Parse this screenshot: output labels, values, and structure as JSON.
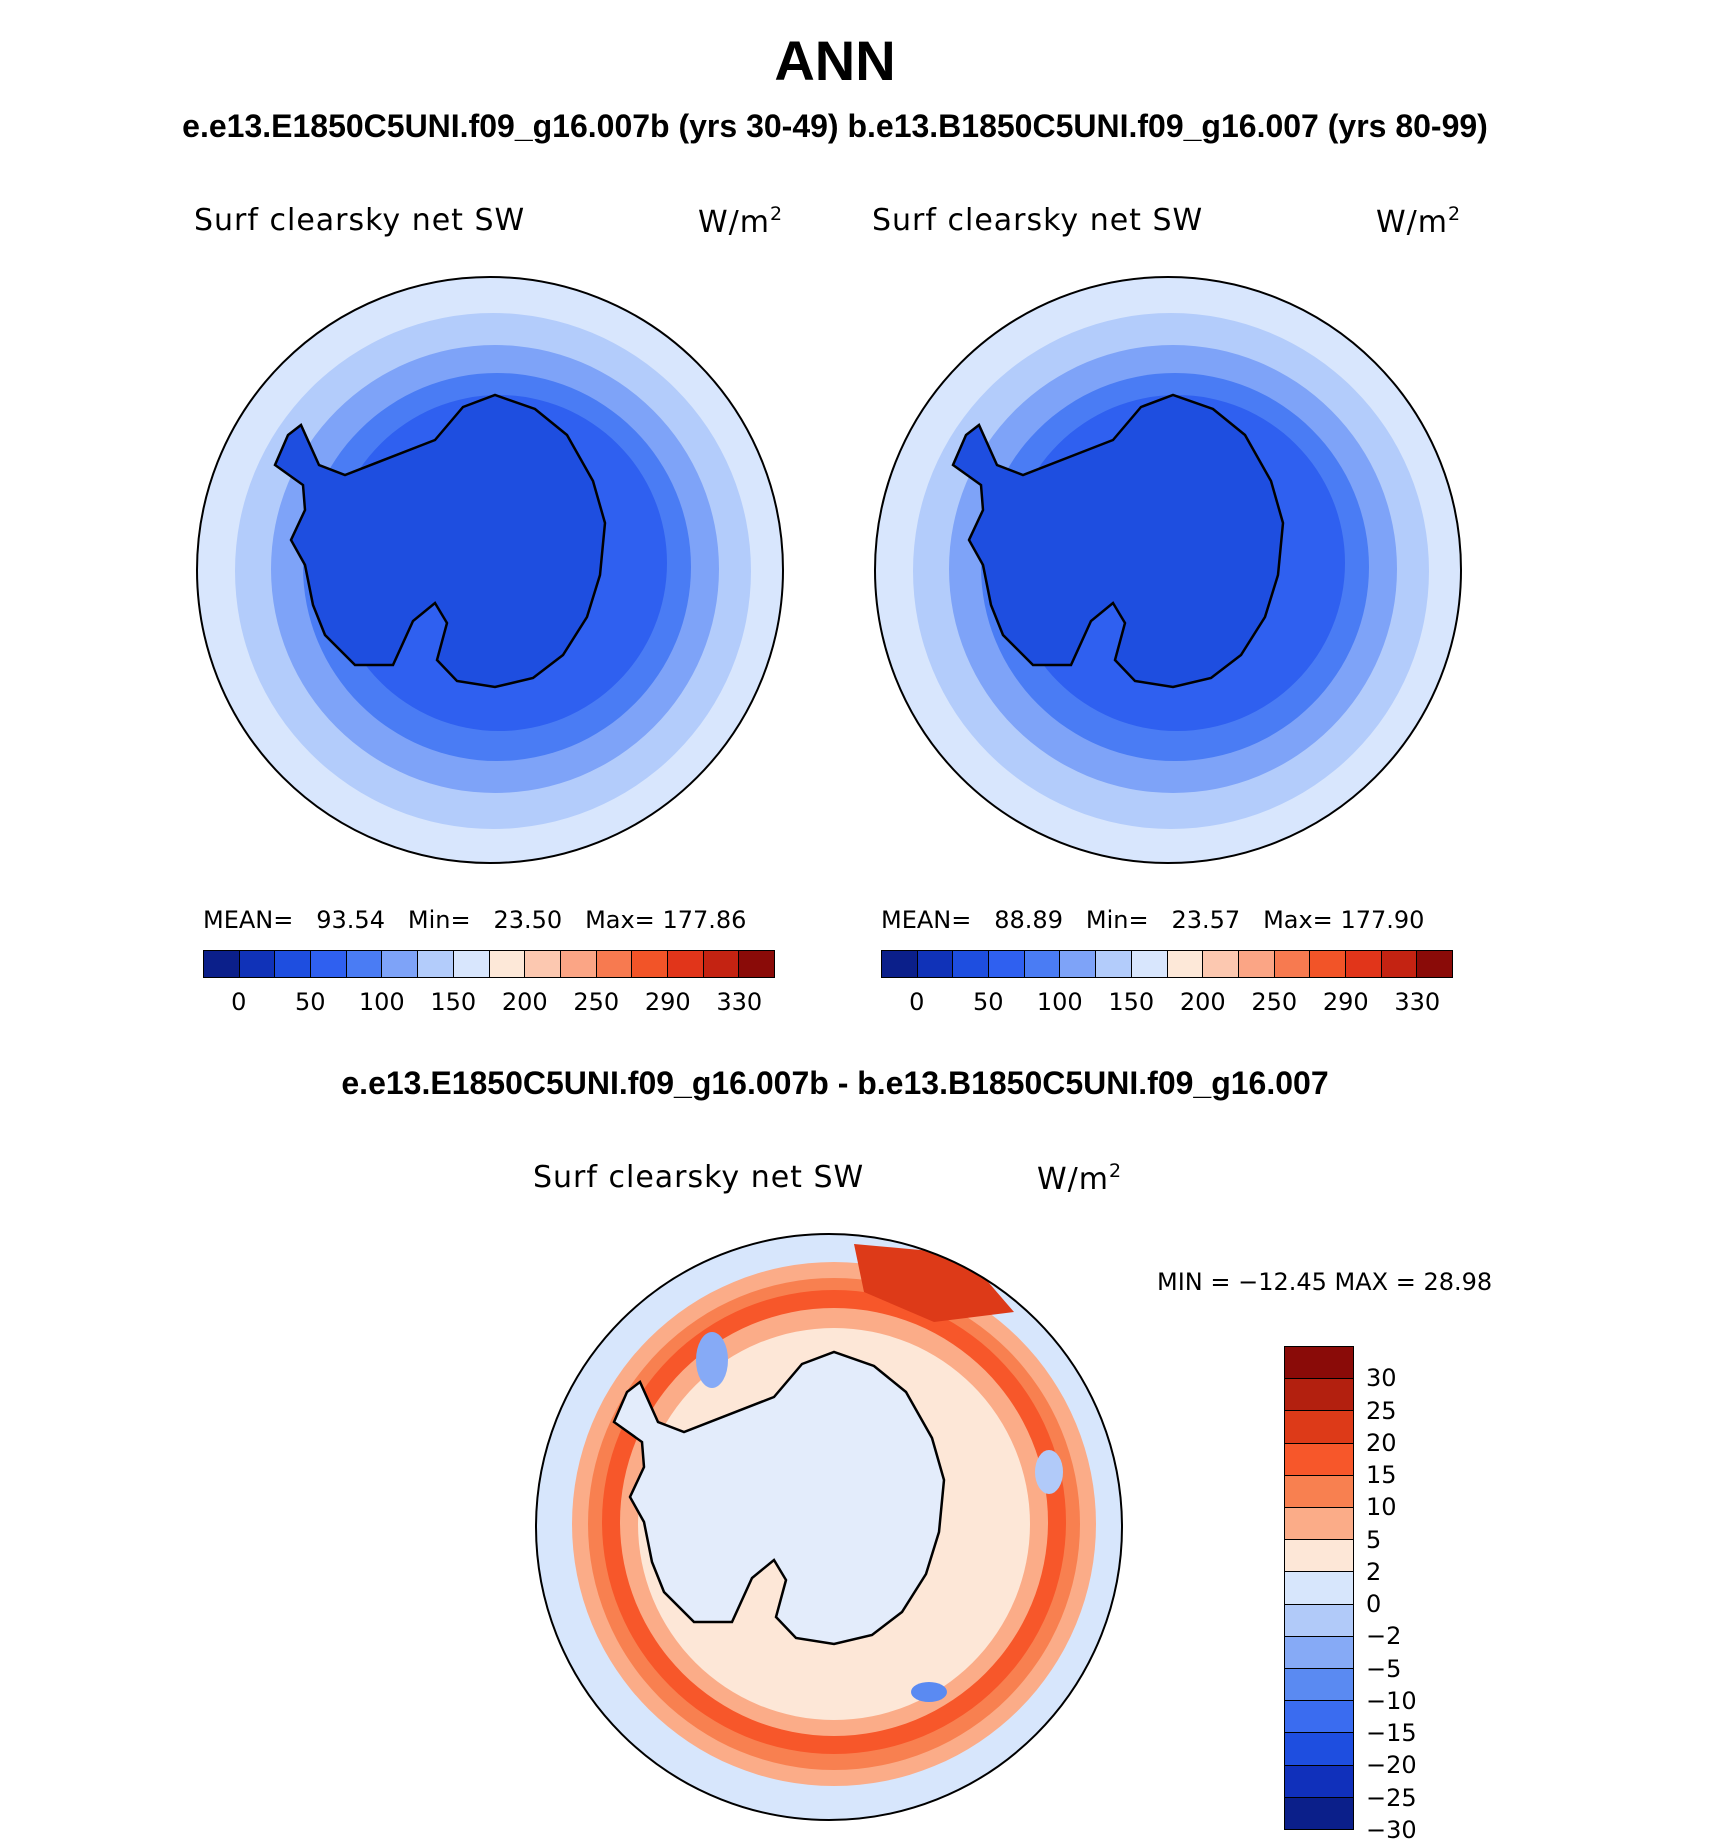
{
  "title": "ANN",
  "subtitle": "e.e13.E1850C5UNI.f09_g16.007b (yrs 30-49)  b.e13.B1850C5UNI.f09_g16.007 (yrs 80-99)",
  "panels": [
    {
      "variable": "Surf clearsky net SW",
      "units": "W/m",
      "units_exp": "2",
      "mean_label": "MEAN=",
      "mean": "93.54",
      "min_label": "Min=",
      "min": "23.50",
      "max_label": "Max=",
      "max": "177.86"
    },
    {
      "variable": "Surf clearsky net SW",
      "units": "W/m",
      "units_exp": "2",
      "mean_label": "MEAN=",
      "mean": "88.89",
      "min_label": "Min=",
      "min": "23.57",
      "max_label": "Max=",
      "max": "177.90"
    }
  ],
  "colorbar": {
    "colors": [
      "#0b1f8a",
      "#1032b8",
      "#1e4ee0",
      "#2f60f0",
      "#4a7cf4",
      "#7ea3f8",
      "#b3ccfb",
      "#d8e6fd",
      "#fde8d8",
      "#fcc8b0",
      "#fba585",
      "#f77a50",
      "#f25428",
      "#e1351a",
      "#c42312",
      "#8a0b08"
    ],
    "labels": [
      "0",
      "50",
      "100",
      "150",
      "200",
      "250",
      "290",
      "330"
    ]
  },
  "difference": {
    "title": "e.e13.E1850C5UNI.f09_g16.007b - b.e13.B1850C5UNI.f09_g16.007",
    "variable": "Surf clearsky net SW",
    "units": "W/m",
    "units_exp": "2",
    "minmax_text": "MIN = −12.45 MAX =   28.98",
    "colorbar_colors": [
      "#8a0b08",
      "#b3200f",
      "#dd3a18",
      "#f7572a",
      "#f88050",
      "#fbac88",
      "#fde7d7",
      "#d7e6fc",
      "#b1caf9",
      "#86aaf6",
      "#5a8af2",
      "#3a6cf0",
      "#1e4ee0",
      "#1030bb",
      "#0b1f8a"
    ],
    "colorbar_labels": [
      "30",
      "25",
      "20",
      "15",
      "10",
      "5",
      "2",
      "0",
      "−2",
      "−5",
      "−10",
      "−15",
      "−20",
      "−25",
      "−30"
    ]
  }
}
